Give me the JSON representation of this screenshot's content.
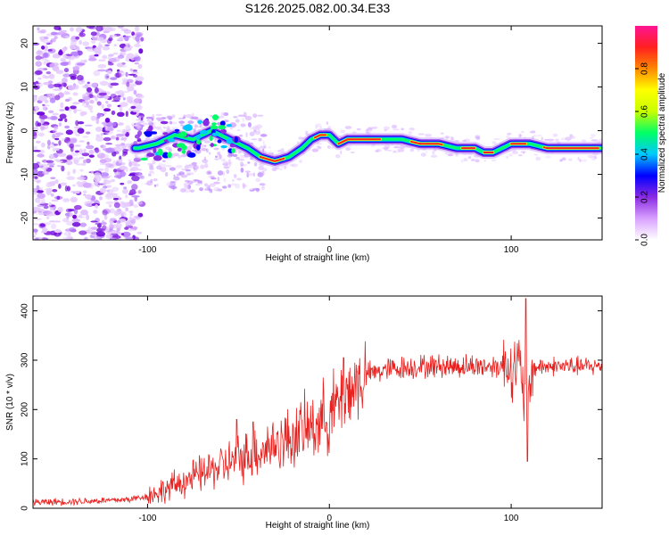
{
  "title": "S126.2025.082.00.34.E33",
  "chart_data": [
    {
      "type": "heatmap",
      "xlabel": "Height of straight line (km)",
      "ylabel": "Frequency (Hz)",
      "xlim": [
        -163,
        150
      ],
      "ylim": [
        -25,
        24
      ],
      "xticks": [
        -100,
        0,
        100
      ],
      "yticks": [
        -20,
        -10,
        0,
        10,
        20
      ],
      "colorbar": {
        "label": "Normalized spectral amplitude",
        "range": [
          0.0,
          1.0
        ],
        "ticks": [
          0.0,
          0.2,
          0.4,
          0.6,
          0.8
        ],
        "tick_labels": [
          "0.0",
          "0.2",
          "0.4",
          "0.6",
          "0.8"
        ],
        "colormap": [
          "#ffffff",
          "#d8a0ff",
          "#8a2be2",
          "#0000ff",
          "#00c8ff",
          "#00ff66",
          "#c8ff00",
          "#ffff00",
          "#ff8800",
          "#ff2020",
          "#ff1493"
        ]
      },
      "ridge": {
        "x": [
          -105,
          -95,
          -85,
          -75,
          -65,
          -55,
          -45,
          -38,
          -30,
          -22,
          -15,
          -10,
          -5,
          0,
          5,
          10,
          20,
          30,
          40,
          50,
          60,
          70,
          80,
          85,
          90,
          95,
          100,
          105,
          110,
          120,
          130,
          140,
          150
        ],
        "y": [
          -4,
          -3,
          -1,
          -2,
          0,
          -2,
          -4,
          -6,
          -7,
          -6,
          -4,
          -2,
          -1,
          -1,
          -3,
          -2,
          -2,
          -2,
          -2,
          -3,
          -3,
          -4,
          -4,
          -5,
          -5,
          -4,
          -3,
          -3,
          -3,
          -4,
          -4,
          -4,
          -4
        ]
      }
    },
    {
      "type": "line",
      "xlabel": "Height of straight line (km)",
      "ylabel": "SNR (10 * v/v)",
      "xlim": [
        -163,
        150
      ],
      "ylim": [
        0,
        430
      ],
      "xticks": [
        -100,
        0,
        100
      ],
      "yticks": [
        0,
        100,
        200,
        300,
        400
      ],
      "color": "#e8201e",
      "series": [
        {
          "name": "SNR",
          "x": [
            -163,
            -140,
            -120,
            -110,
            -100,
            -90,
            -80,
            -70,
            -60,
            -50,
            -40,
            -30,
            -20,
            -10,
            0,
            10,
            20,
            30,
            40,
            50,
            60,
            70,
            80,
            90,
            100,
            105,
            108,
            112,
            120,
            130,
            140,
            150
          ],
          "values": [
            12,
            14,
            16,
            18,
            25,
            38,
            55,
            70,
            85,
            100,
            115,
            130,
            145,
            165,
            190,
            235,
            270,
            280,
            285,
            287,
            288,
            288,
            288,
            288,
            290,
            285,
            200,
            285,
            288,
            288,
            287,
            288
          ],
          "spikes": [
            {
              "x": -51,
              "value": 180
            },
            {
              "x": -42,
              "value": 175
            },
            {
              "x": 8,
              "value": 305
            },
            {
              "x": 108,
              "value": 425
            },
            {
              "x": 109,
              "value": 95
            }
          ]
        }
      ]
    }
  ]
}
